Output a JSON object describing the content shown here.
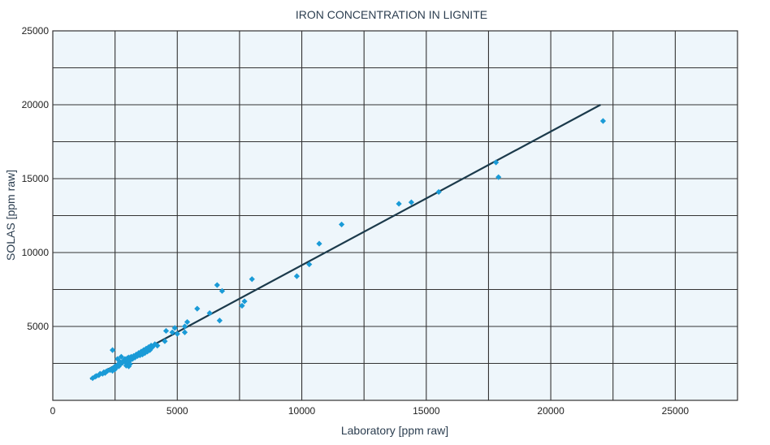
{
  "chart_data": {
    "type": "scatter",
    "title": "IRON CONCENTRATION IN LIGNITE",
    "xlabel": "Laboratory [ppm raw]",
    "ylabel": "SOLAS [ppm raw]",
    "xlim": [
      0,
      27500
    ],
    "ylim": [
      0,
      25000
    ],
    "x_ticks": [
      0,
      5000,
      10000,
      15000,
      20000,
      25000
    ],
    "y_ticks": [
      5000,
      10000,
      15000,
      20000,
      25000
    ],
    "grid": true,
    "colors": {
      "points": "#1a9bd7",
      "line": "#1b3a4b",
      "grid": "#333333",
      "background": "#eef6fb"
    },
    "series": [
      {
        "points": [
          [
            1600,
            1500
          ],
          [
            1700,
            1600
          ],
          [
            1750,
            1650
          ],
          [
            1850,
            1700
          ],
          [
            1900,
            1800
          ],
          [
            2000,
            1800
          ],
          [
            2050,
            1900
          ],
          [
            2100,
            1850
          ],
          [
            2150,
            1950
          ],
          [
            2200,
            2000
          ],
          [
            2300,
            2050
          ],
          [
            2350,
            2100
          ],
          [
            2400,
            2000
          ],
          [
            2450,
            2200
          ],
          [
            2500,
            2100
          ],
          [
            2500,
            2300
          ],
          [
            2550,
            2250
          ],
          [
            2600,
            2400
          ],
          [
            2650,
            2300
          ],
          [
            2700,
            2450
          ],
          [
            2700,
            2600
          ],
          [
            2750,
            2500
          ],
          [
            2800,
            2550
          ],
          [
            2850,
            2700
          ],
          [
            2900,
            2600
          ],
          [
            2900,
            2800
          ],
          [
            2950,
            2750
          ],
          [
            3000,
            2850
          ],
          [
            3000,
            2500
          ],
          [
            3050,
            2900
          ],
          [
            3100,
            2700
          ],
          [
            3150,
            2950
          ],
          [
            3200,
            2800
          ],
          [
            3250,
            3000
          ],
          [
            3300,
            2900
          ],
          [
            3350,
            3100
          ],
          [
            3400,
            3000
          ],
          [
            3450,
            3200
          ],
          [
            3500,
            3050
          ],
          [
            3550,
            3300
          ],
          [
            3600,
            3100
          ],
          [
            3650,
            3400
          ],
          [
            3700,
            3200
          ],
          [
            3750,
            3500
          ],
          [
            3800,
            3300
          ],
          [
            3850,
            3600
          ],
          [
            3900,
            3400
          ],
          [
            3950,
            3700
          ],
          [
            4000,
            3600
          ],
          [
            4100,
            3800
          ],
          [
            4200,
            3700
          ],
          [
            2400,
            3400
          ],
          [
            2600,
            2800
          ],
          [
            2750,
            2950
          ],
          [
            3050,
            2300
          ],
          [
            3100,
            2450
          ],
          [
            2950,
            2350
          ],
          [
            4500,
            4000
          ],
          [
            4550,
            4700
          ],
          [
            4800,
            4600
          ],
          [
            4900,
            4900
          ],
          [
            5000,
            4500
          ],
          [
            5300,
            4600
          ],
          [
            5300,
            5000
          ],
          [
            5400,
            5300
          ],
          [
            5800,
            6200
          ],
          [
            6300,
            5900
          ],
          [
            6600,
            7800
          ],
          [
            6700,
            5400
          ],
          [
            6800,
            7400
          ],
          [
            7600,
            6400
          ],
          [
            7700,
            6700
          ],
          [
            8000,
            8200
          ],
          [
            9800,
            8400
          ],
          [
            10300,
            9200
          ],
          [
            10700,
            10600
          ],
          [
            11600,
            11900
          ],
          [
            13900,
            13300
          ],
          [
            14400,
            13400
          ],
          [
            15500,
            14100
          ],
          [
            17800,
            16100
          ],
          [
            17900,
            15100
          ],
          [
            22100,
            18900
          ]
        ]
      }
    ],
    "fit_line": {
      "x": [
        1500,
        22000
      ],
      "y": [
        1450,
        20000
      ]
    }
  }
}
